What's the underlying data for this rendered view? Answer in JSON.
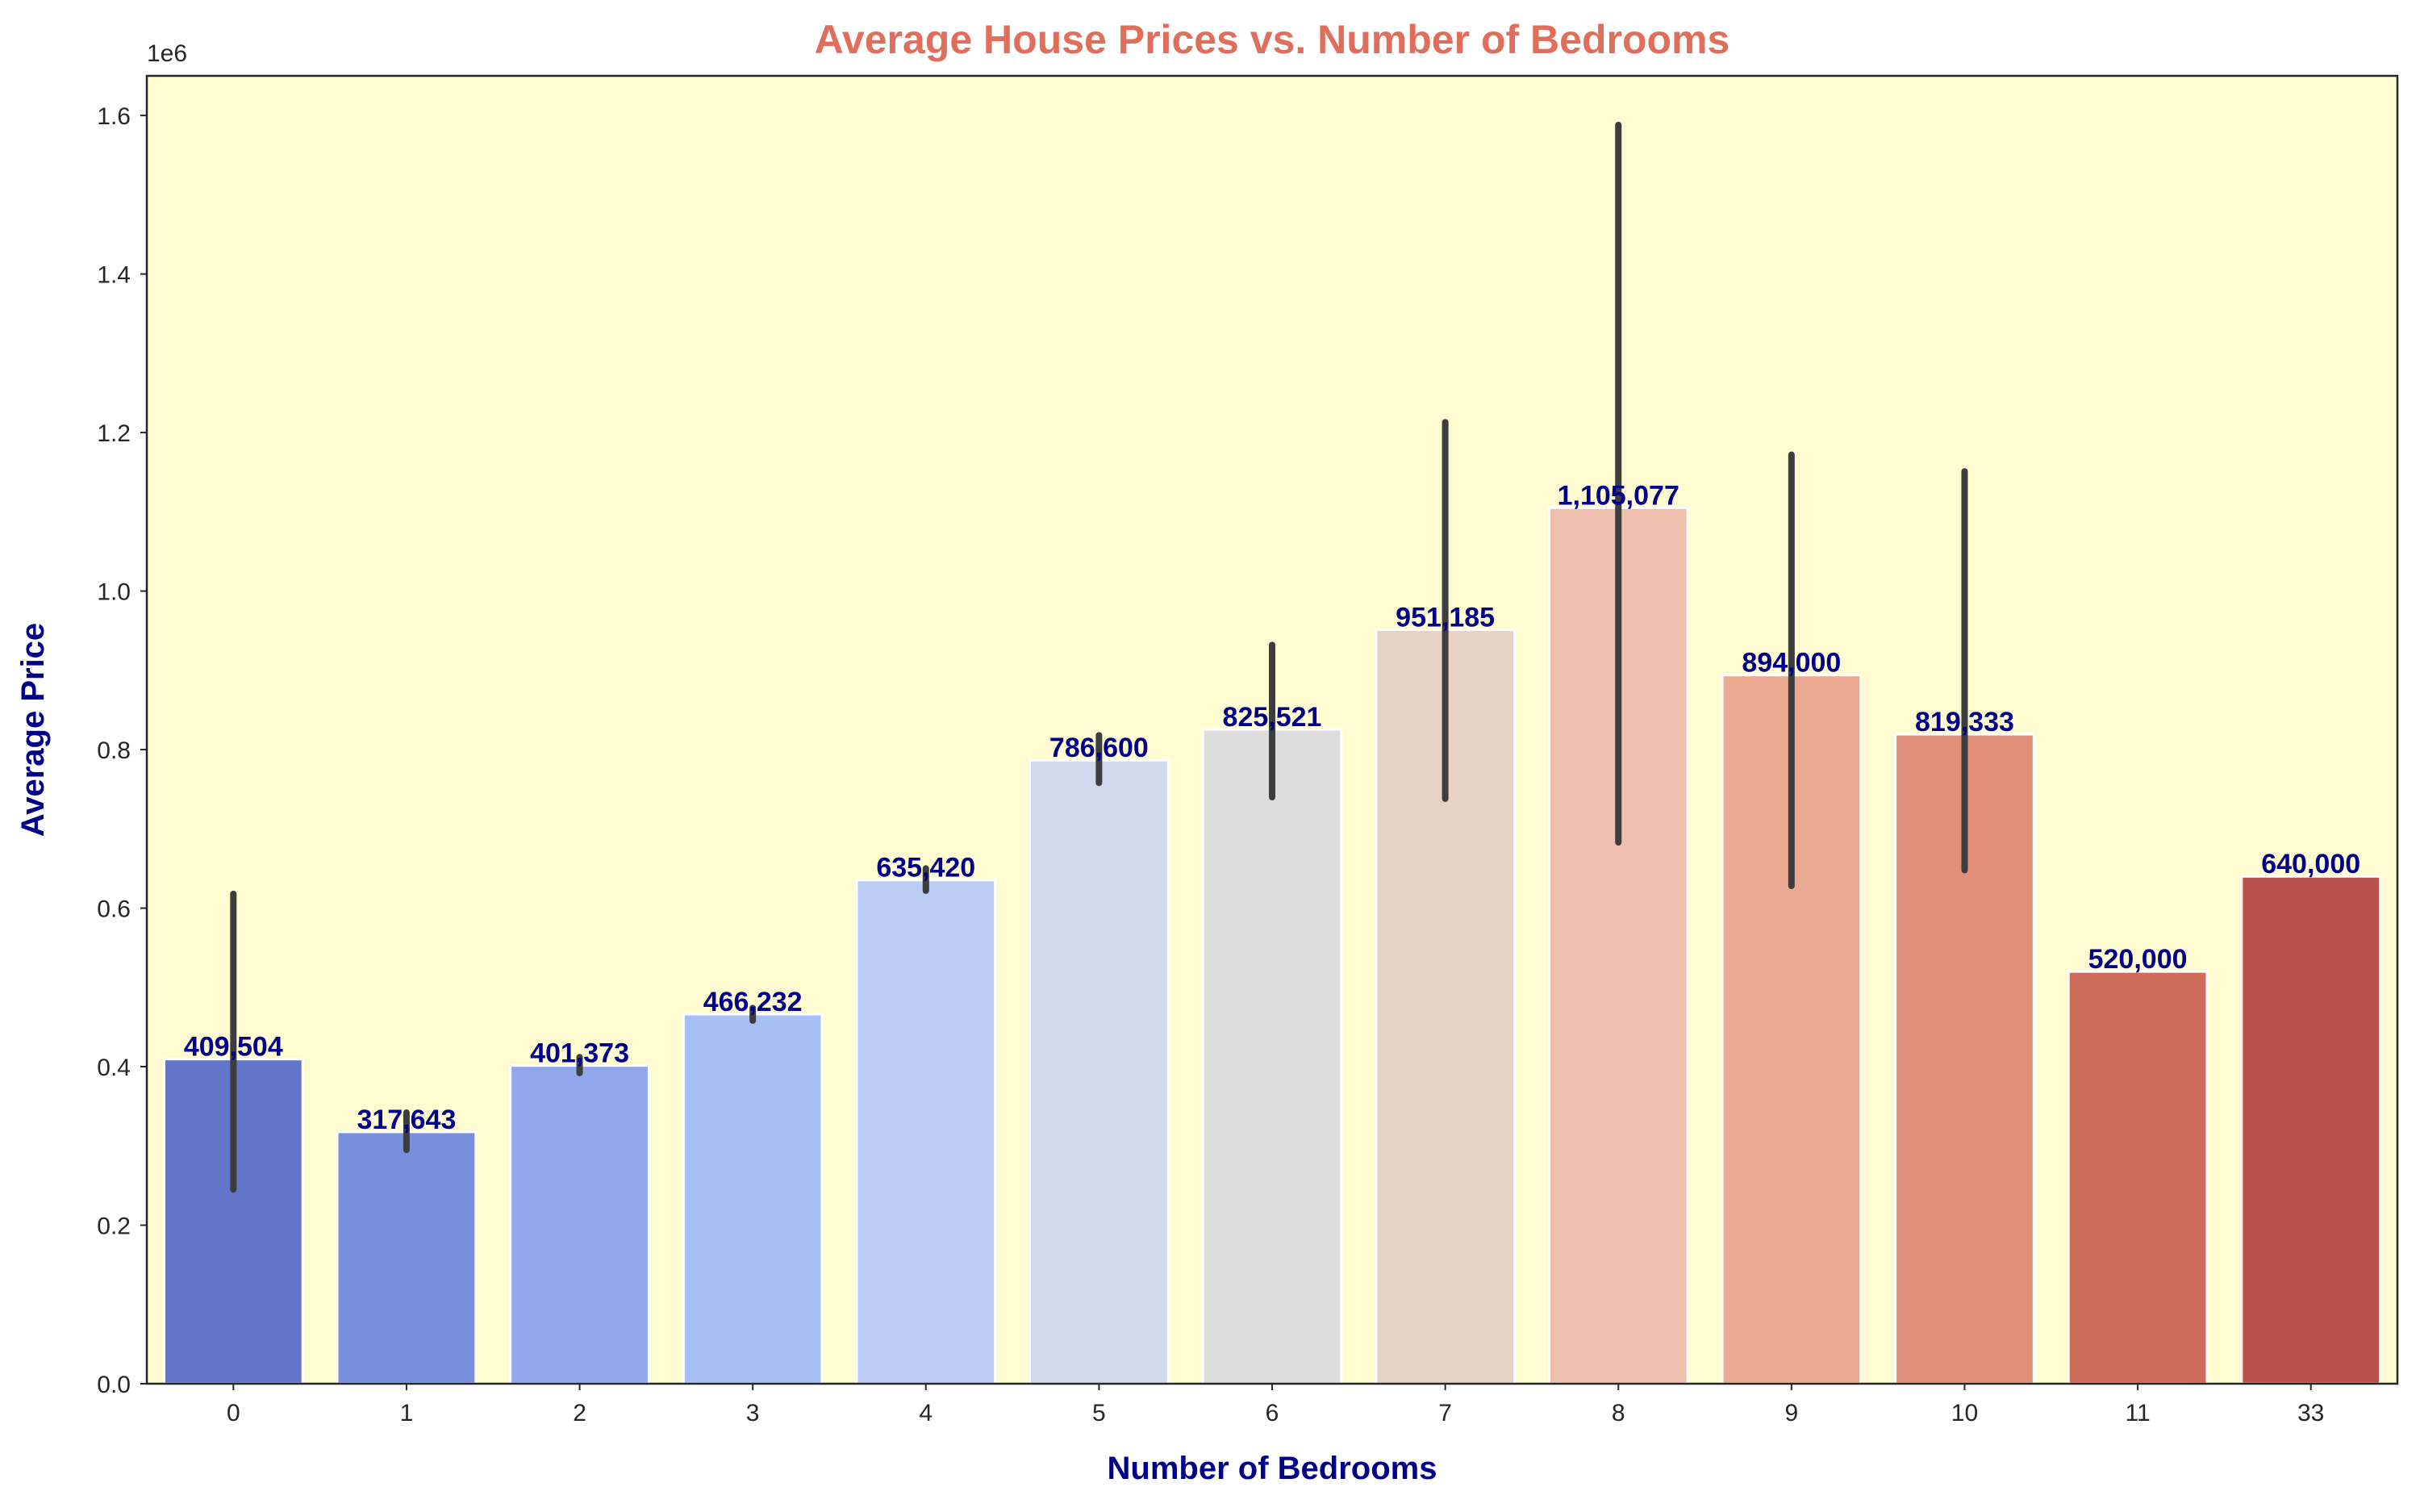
{
  "chart_data": {
    "type": "bar",
    "title": "Average House Prices vs. Number of Bedrooms",
    "xlabel": "Number of Bedrooms",
    "ylabel": "Average Price",
    "y_offset_label": "1e6",
    "y_scale": 1000000,
    "ylim": [
      0,
      1.65
    ],
    "yticks": [
      "0.0",
      "0.2",
      "0.4",
      "0.6",
      "0.8",
      "1.0",
      "1.2",
      "1.4",
      "1.6"
    ],
    "ytick_values": [
      0,
      0.2,
      0.4,
      0.6,
      0.8,
      1.0,
      1.2,
      1.4,
      1.6
    ],
    "categories": [
      "0",
      "1",
      "2",
      "3",
      "4",
      "5",
      "6",
      "7",
      "8",
      "9",
      "10",
      "11",
      "33"
    ],
    "values": [
      409504,
      317643,
      401373,
      466232,
      635420,
      786600,
      825521,
      951185,
      1105077,
      894000,
      819333,
      520000,
      640000
    ],
    "value_labels": [
      "409,504",
      "317,643",
      "401,373",
      "466,232",
      "635,420",
      "786,600",
      "825,521",
      "951,185",
      "1,105,077",
      "894,000",
      "819,333",
      "520,000",
      "640,000"
    ],
    "error_low": [
      245000,
      295000,
      392000,
      458000,
      622000,
      758000,
      740000,
      738000,
      683000,
      628000,
      648000,
      null,
      null
    ],
    "error_high": [
      618000,
      342000,
      412000,
      474000,
      650000,
      818000,
      932000,
      1213000,
      1588000,
      1172000,
      1151000,
      null,
      null
    ],
    "bar_colors": [
      "#6176c9",
      "#788fdd",
      "#90a8eb",
      "#a6c0f5",
      "#bccdf3",
      "#cfd8ec",
      "#dcdcdc",
      "#e8d2c6",
      "#edbfac",
      "#ebab93",
      "#e0907a",
      "#cf6b5b",
      "#b9524c"
    ],
    "colors": {
      "plot_background": "#fffcd2",
      "title": "#e06e5a",
      "axis_title": "#00008b",
      "value_label": "#00008b",
      "error_bar": "#3d3d3d",
      "bar_edge": "#ffffff"
    },
    "grid": false,
    "legend": "none"
  }
}
